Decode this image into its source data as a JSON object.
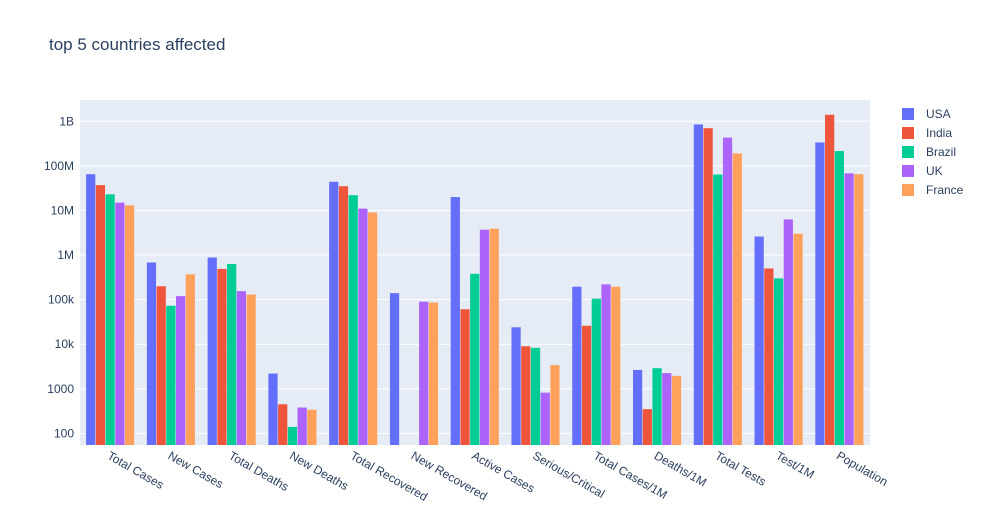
{
  "chart_data": {
    "type": "bar",
    "title": "top 5 countries affected",
    "xlabel": "",
    "ylabel": "",
    "yscale": "log",
    "ylim": [
      55,
      3000000000
    ],
    "grid": true,
    "legend_position": "top-right",
    "y_ticks": [
      100,
      1000,
      10000,
      100000,
      1000000,
      10000000,
      100000000,
      1000000000
    ],
    "y_tick_labels": [
      "100",
      "1000",
      "10k",
      "100k",
      "1M",
      "10M",
      "100M",
      "1B"
    ],
    "categories": [
      "Total Cases",
      "New Cases",
      "Total Deaths",
      "New Deaths",
      "Total Recovered",
      "New Recovered",
      "Active Cases",
      "Serious/Critical",
      "Total Cases/1M",
      "Deaths/1M",
      "Total Tests",
      "Test/1M",
      "Population"
    ],
    "series": [
      {
        "name": "USA",
        "color": "#636efa",
        "values": [
          65000000,
          680000,
          880000,
          2200,
          44000000,
          140000,
          20000000,
          24000,
          195000,
          2650,
          850000000,
          2600000,
          335000000
        ]
      },
      {
        "name": "India",
        "color": "#EF553B",
        "values": [
          37000000,
          200000,
          490000,
          450,
          35000000,
          0,
          61000,
          9000,
          26000,
          350,
          700000000,
          500000,
          1400000000
        ]
      },
      {
        "name": "Brazil",
        "color": "#00cc96",
        "values": [
          23000000,
          73000,
          630000,
          140,
          22000000,
          0,
          380000,
          8300,
          105000,
          2900,
          64000000,
          300000,
          215000000
        ]
      },
      {
        "name": "UK",
        "color": "#ab63fa",
        "values": [
          15000000,
          120000,
          155000,
          380,
          11000000,
          90000,
          3700000,
          820,
          220000,
          2250,
          430000000,
          6300000,
          68000000
        ]
      },
      {
        "name": "France",
        "color": "#FFA15A",
        "values": [
          13000000,
          370000,
          130000,
          340,
          9000000,
          86000,
          3900000,
          3400,
          195000,
          1950,
          190000000,
          3000000,
          65000000
        ]
      }
    ]
  }
}
